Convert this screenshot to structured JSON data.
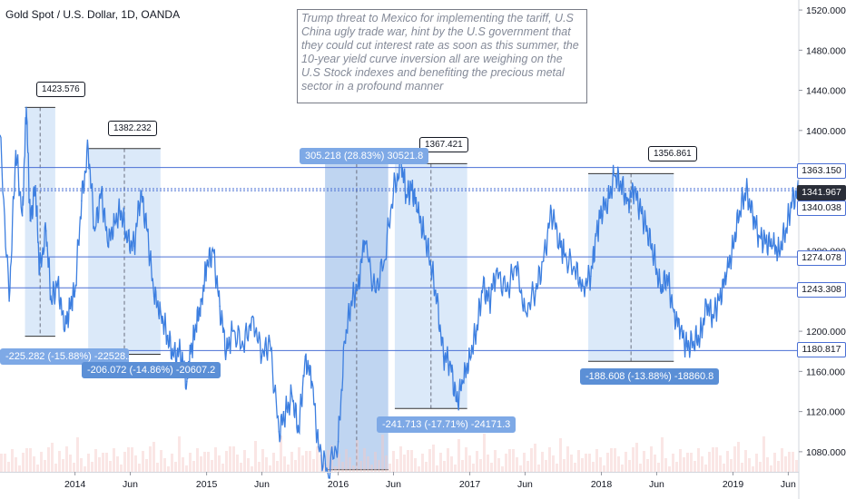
{
  "header": {
    "symbol_title": "Gold Spot / U.S. Dollar, 1D, OANDA"
  },
  "note": {
    "text": "Trump threat to Mexico for implementing the tariff, U.S China ugly trade war, hint by the U.S government that they could cut interest rate as soon as this summer, the 10-year yield curve inversion all are weighing on the U.S Stock indexes and benefiting the precious metal sector in a profound manner"
  },
  "callouts": [
    "1423.576",
    "1382.232",
    "1367.421",
    "1356.861"
  ],
  "measures": [
    "-225.282 (-15.88%) -22528.2",
    "-206.072 (-14.86%) -20607.2",
    "305.218 (28.83%) 30521.8",
    "-241.713 (-17.71%) -24171.3",
    "-188.608 (-13.88%) -18860.8"
  ],
  "price_tags": [
    "1363.150",
    "1341.967",
    "1340.038",
    "1274.078",
    "1243.308",
    "1180.817"
  ],
  "colors": {
    "line": "#3d7fe0",
    "level": "#4a6fd4",
    "zone": "#cfe2f7",
    "zone_dark": "#a9c7ec",
    "volume": "#f4c8c6"
  },
  "chart_data": {
    "type": "line",
    "title": "Gold Spot / U.S. Dollar, 1D, OANDA",
    "ylim": [
      1060,
      1530
    ],
    "y_ticks": [
      "1520.000",
      "1480.000",
      "1440.000",
      "1400.000",
      "1360.000",
      "1320.000",
      "1280.000",
      "1240.000",
      "1200.000",
      "1160.000",
      "1120.000",
      "1080.000"
    ],
    "y_tick_values": [
      1520,
      1480,
      1440,
      1400,
      1360,
      1320,
      1280,
      1240,
      1200,
      1160,
      1120,
      1080
    ],
    "x_ticks": [
      "2014",
      "Jun",
      "2015",
      "Jun",
      "2016",
      "Jun",
      "2017",
      "Jun",
      "2018",
      "Jun",
      "2019",
      "Jun"
    ],
    "x_tick_dates": [
      2014.0,
      2014.42,
      2015.0,
      2015.42,
      2016.0,
      2016.42,
      2017.0,
      2017.42,
      2018.0,
      2018.42,
      2019.0,
      2019.42
    ],
    "xlim": [
      2013.43,
      2019.5
    ],
    "horizontal_levels": [
      1363.15,
      1341.967,
      1340.038,
      1274.078,
      1243.308,
      1180.817
    ],
    "series": [
      {
        "x": [
          2013.43,
          2013.5,
          2013.55,
          2013.6,
          2013.63,
          2013.66,
          2013.7,
          2013.73,
          2013.78,
          2013.82,
          2013.87,
          2013.92,
          2013.96,
          2014.0,
          2014.05,
          2014.1,
          2014.15,
          2014.2,
          2014.25,
          2014.3,
          2014.35,
          2014.4,
          2014.45,
          2014.5,
          2014.55,
          2014.6,
          2014.65,
          2014.7,
          2014.75,
          2014.8,
          2014.85,
          2014.88,
          2014.92,
          2014.96,
          2015.0,
          2015.05,
          2015.1,
          2015.15,
          2015.2,
          2015.28,
          2015.35,
          2015.42,
          2015.48,
          2015.55,
          2015.6,
          2015.65,
          2015.7,
          2015.75,
          2015.8,
          2015.85,
          2015.92,
          2016.0,
          2016.05,
          2016.1,
          2016.15,
          2016.2,
          2016.28,
          2016.35,
          2016.42,
          2016.48,
          2016.52,
          2016.56,
          2016.6,
          2016.65,
          2016.7,
          2016.75,
          2016.8,
          2016.85,
          2016.9,
          2016.95,
          2017.0,
          2017.05,
          2017.1,
          2017.15,
          2017.2,
          2017.28,
          2017.35,
          2017.42,
          2017.5,
          2017.56,
          2017.62,
          2017.68,
          2017.72,
          2017.8,
          2017.86,
          2017.92,
          2017.96,
          2018.0,
          2018.05,
          2018.1,
          2018.15,
          2018.2,
          2018.25,
          2018.3,
          2018.35,
          2018.4,
          2018.45,
          2018.5,
          2018.55,
          2018.6,
          2018.65,
          2018.7,
          2018.75,
          2018.8,
          2018.85,
          2018.9,
          2018.95,
          2019.0,
          2019.05,
          2019.1,
          2019.15,
          2019.2,
          2019.25,
          2019.3,
          2019.35,
          2019.4,
          2019.45,
          2019.5
        ],
        "y": [
          1395,
          1230,
          1380,
          1315,
          1423,
          1310,
          1345,
          1260,
          1300,
          1230,
          1250,
          1200,
          1225,
          1240,
          1330,
          1382,
          1300,
          1340,
          1285,
          1310,
          1320,
          1290,
          1285,
          1340,
          1300,
          1235,
          1220,
          1195,
          1175,
          1180,
          1150,
          1180,
          1205,
          1230,
          1265,
          1280,
          1225,
          1180,
          1200,
          1185,
          1215,
          1175,
          1190,
          1100,
          1120,
          1135,
          1100,
          1175,
          1150,
          1085,
          1060,
          1090,
          1190,
          1230,
          1245,
          1290,
          1240,
          1270,
          1340,
          1367,
          1335,
          1345,
          1320,
          1300,
          1270,
          1230,
          1175,
          1170,
          1130,
          1150,
          1175,
          1200,
          1245,
          1230,
          1260,
          1240,
          1265,
          1220,
          1240,
          1270,
          1320,
          1290,
          1275,
          1260,
          1245,
          1255,
          1295,
          1320,
          1330,
          1355,
          1345,
          1330,
          1340,
          1320,
          1300,
          1275,
          1240,
          1255,
          1220,
          1200,
          1185,
          1190,
          1195,
          1225,
          1215,
          1235,
          1255,
          1285,
          1320,
          1340,
          1315,
          1295,
          1290,
          1285,
          1280,
          1300,
          1330,
          1340
        ]
      }
    ]
  }
}
